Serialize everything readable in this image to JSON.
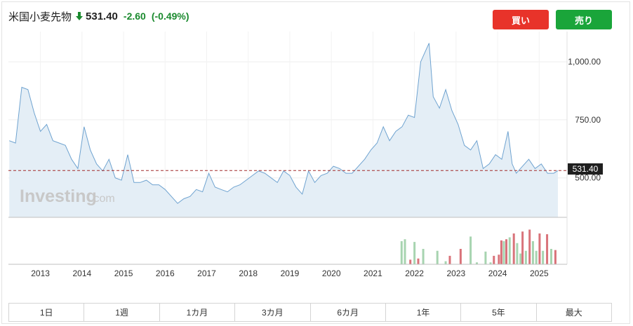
{
  "header": {
    "title": "米国小麦先物",
    "price": "531.40",
    "change": "-2.60",
    "change_pct": "(-0.49%)"
  },
  "buttons": {
    "buy": "買い",
    "sell": "売り"
  },
  "watermark": {
    "brand": "Investing",
    "suffix": ".com"
  },
  "current_label": "531.40",
  "tabs": [
    "1日",
    "1週",
    "1カ月",
    "3カ月",
    "6カ月",
    "1年",
    "5年",
    "最大"
  ],
  "colors": {
    "line": "#6fa3d0",
    "area": "#e4eef6",
    "current_line": "#a12a2a",
    "vol_up": "#a7d4b0",
    "vol_down": "#d9737a",
    "down": "#1a8a2e"
  },
  "chart_data": {
    "type": "area",
    "ylim": [
      330,
      1130
    ],
    "y_ticks": [
      1000,
      750,
      500
    ],
    "y_tick_labels": [
      "1,000.00",
      "750.00",
      "500.00"
    ],
    "current_value": 531.4,
    "x_ticks": [
      "2013",
      "2014",
      "2015",
      "2016",
      "2017",
      "2018",
      "2019",
      "2020",
      "2021",
      "2022",
      "2023",
      "2024",
      "2025"
    ],
    "x": [
      2012.3,
      2012.45,
      2012.6,
      2012.75,
      2012.9,
      2013.05,
      2013.2,
      2013.35,
      2013.5,
      2013.65,
      2013.8,
      2013.95,
      2014.1,
      2014.25,
      2014.4,
      2014.55,
      2014.7,
      2014.85,
      2015.0,
      2015.15,
      2015.3,
      2015.45,
      2015.6,
      2015.75,
      2015.9,
      2016.05,
      2016.2,
      2016.35,
      2016.5,
      2016.65,
      2016.8,
      2016.95,
      2017.1,
      2017.25,
      2017.4,
      2017.55,
      2017.7,
      2017.85,
      2018.0,
      2018.15,
      2018.3,
      2018.45,
      2018.6,
      2018.75,
      2018.9,
      2019.05,
      2019.2,
      2019.35,
      2019.5,
      2019.65,
      2019.8,
      2019.95,
      2020.1,
      2020.25,
      2020.4,
      2020.55,
      2020.7,
      2020.85,
      2021.0,
      2021.15,
      2021.3,
      2021.45,
      2021.6,
      2021.75,
      2021.9,
      2022.05,
      2022.2,
      2022.3,
      2022.4,
      2022.5,
      2022.65,
      2022.8,
      2022.95,
      2023.1,
      2023.25,
      2023.4,
      2023.55,
      2023.7,
      2023.85,
      2024.0,
      2024.15,
      2024.3,
      2024.4,
      2024.5,
      2024.65,
      2024.8,
      2024.95,
      2025.1,
      2025.25,
      2025.4,
      2025.5
    ],
    "y": [
      660,
      650,
      890,
      880,
      780,
      700,
      730,
      660,
      650,
      640,
      580,
      540,
      720,
      620,
      560,
      530,
      580,
      500,
      490,
      600,
      480,
      480,
      490,
      470,
      470,
      450,
      420,
      390,
      410,
      420,
      450,
      440,
      520,
      460,
      450,
      440,
      460,
      470,
      490,
      510,
      530,
      520,
      500,
      480,
      530,
      510,
      460,
      430,
      530,
      480,
      510,
      520,
      550,
      540,
      520,
      520,
      550,
      580,
      620,
      650,
      720,
      660,
      700,
      720,
      770,
      760,
      1000,
      1040,
      1080,
      850,
      800,
      880,
      790,
      730,
      640,
      620,
      660,
      540,
      560,
      600,
      580,
      700,
      560,
      520,
      550,
      580,
      540,
      560,
      520,
      520,
      531
    ]
  },
  "volume_data": {
    "type": "bar",
    "max": 100,
    "bars": [
      {
        "x": 2021.74,
        "v": 60,
        "dir": "up"
      },
      {
        "x": 2021.82,
        "v": 65,
        "dir": "up"
      },
      {
        "x": 2021.95,
        "v": 12,
        "dir": "down"
      },
      {
        "x": 2022.05,
        "v": 58,
        "dir": "up"
      },
      {
        "x": 2022.14,
        "v": 15,
        "dir": "down"
      },
      {
        "x": 2022.26,
        "v": 40,
        "dir": "up"
      },
      {
        "x": 2022.6,
        "v": 35,
        "dir": "up"
      },
      {
        "x": 2022.8,
        "v": 8,
        "dir": "up"
      },
      {
        "x": 2022.9,
        "v": 22,
        "dir": "down"
      },
      {
        "x": 2023.16,
        "v": 40,
        "dir": "down"
      },
      {
        "x": 2023.4,
        "v": 72,
        "dir": "up"
      },
      {
        "x": 2023.55,
        "v": 5,
        "dir": "up"
      },
      {
        "x": 2023.76,
        "v": 33,
        "dir": "up"
      },
      {
        "x": 2023.88,
        "v": 5,
        "dir": "up"
      },
      {
        "x": 2023.96,
        "v": 22,
        "dir": "down"
      },
      {
        "x": 2024.08,
        "v": 25,
        "dir": "down"
      },
      {
        "x": 2024.14,
        "v": 62,
        "dir": "down"
      },
      {
        "x": 2024.2,
        "v": 60,
        "dir": "up"
      },
      {
        "x": 2024.26,
        "v": 65,
        "dir": "down"
      },
      {
        "x": 2024.34,
        "v": 70,
        "dir": "up"
      },
      {
        "x": 2024.44,
        "v": 80,
        "dir": "down"
      },
      {
        "x": 2024.52,
        "v": 55,
        "dir": "up"
      },
      {
        "x": 2024.6,
        "v": 28,
        "dir": "up"
      },
      {
        "x": 2024.65,
        "v": 85,
        "dir": "down"
      },
      {
        "x": 2024.73,
        "v": 35,
        "dir": "up"
      },
      {
        "x": 2024.82,
        "v": 90,
        "dir": "down"
      },
      {
        "x": 2024.9,
        "v": 60,
        "dir": "up"
      },
      {
        "x": 2024.98,
        "v": 35,
        "dir": "up"
      },
      {
        "x": 2025.06,
        "v": 80,
        "dir": "down"
      },
      {
        "x": 2025.14,
        "v": 35,
        "dir": "up"
      },
      {
        "x": 2025.24,
        "v": 78,
        "dir": "down"
      },
      {
        "x": 2025.34,
        "v": 40,
        "dir": "up"
      },
      {
        "x": 2025.44,
        "v": 37,
        "dir": "down"
      }
    ]
  }
}
